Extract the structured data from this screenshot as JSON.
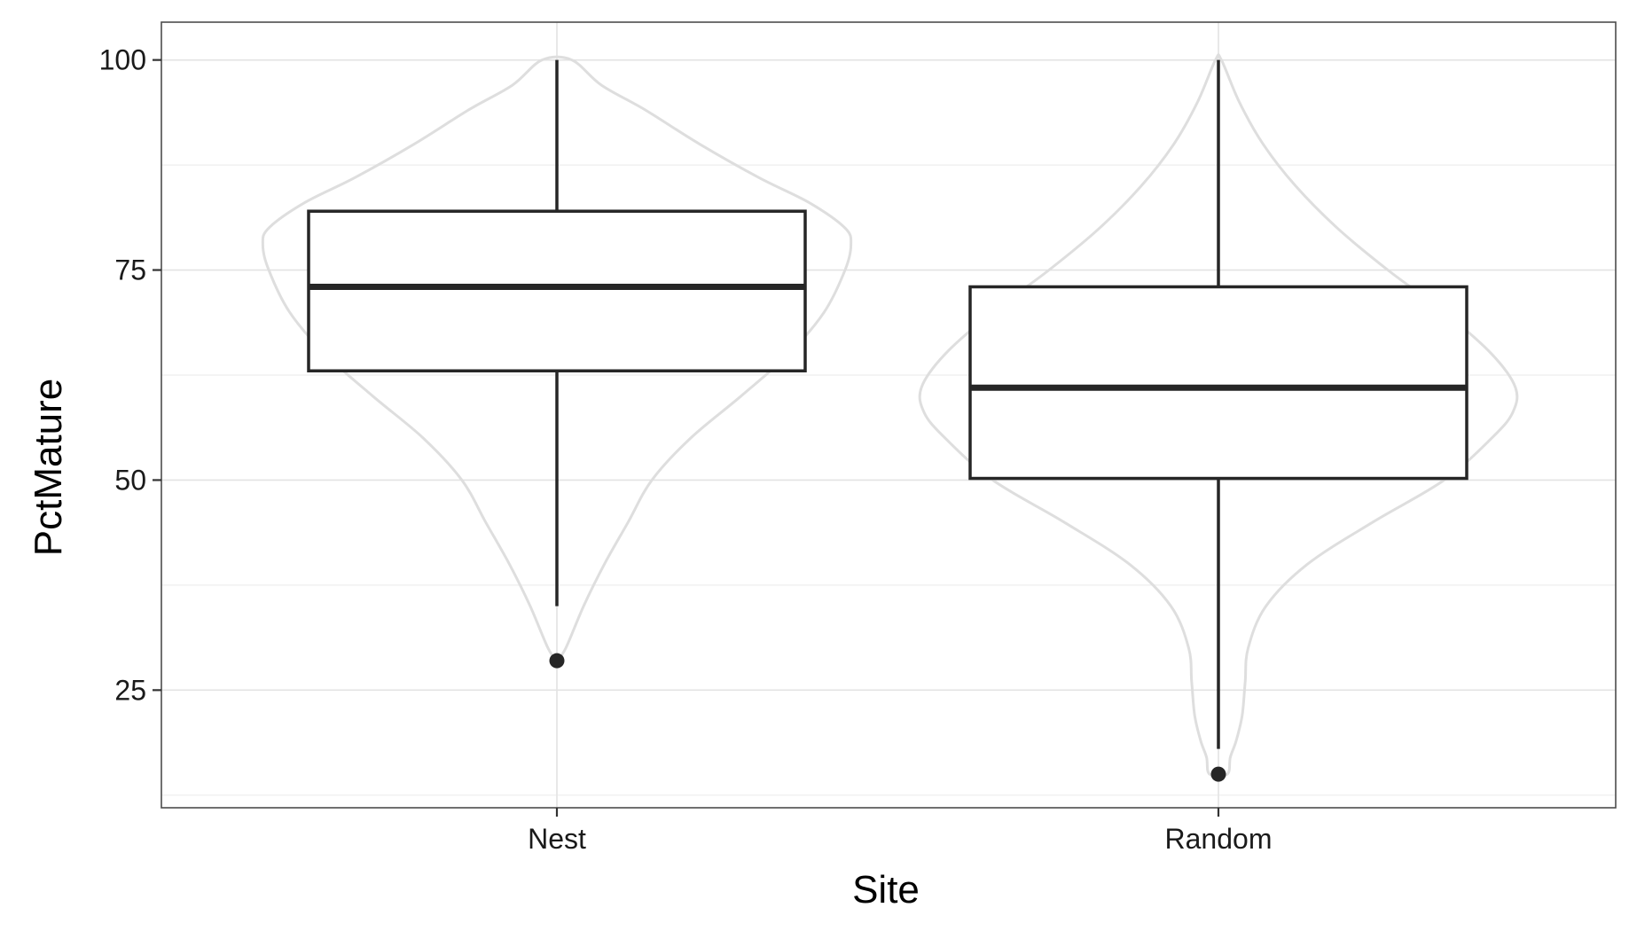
{
  "chart_data": {
    "type": "boxplot",
    "overlay": "violin",
    "xlabel": "Site",
    "ylabel": "PctMature",
    "categories": [
      "Nest",
      "Random"
    ],
    "ylim": [
      11,
      104.5
    ],
    "yticks": [
      25,
      50,
      75,
      100
    ],
    "grid": true,
    "legend": "none",
    "boxes": [
      {
        "category": "Nest",
        "whisker_low": 35,
        "q1": 63,
        "median": 73,
        "q3": 82,
        "whisker_high": 100,
        "outliers": [
          28.5
        ]
      },
      {
        "category": "Random",
        "whisker_low": 18,
        "q1": 50.2,
        "median": 61,
        "q3": 73,
        "whisker_high": 100,
        "outliers": [
          15
        ]
      }
    ],
    "violins": [
      {
        "category": "Nest",
        "profile": [
          [
            28.5,
            0.0
          ],
          [
            30,
            0.03
          ],
          [
            35,
            0.09
          ],
          [
            40,
            0.16
          ],
          [
            45,
            0.24
          ],
          [
            50,
            0.32
          ],
          [
            55,
            0.45
          ],
          [
            60,
            0.62
          ],
          [
            65,
            0.78
          ],
          [
            70,
            0.9
          ],
          [
            75,
            0.97
          ],
          [
            78,
            0.99
          ],
          [
            80,
            0.97
          ],
          [
            83,
            0.85
          ],
          [
            86,
            0.68
          ],
          [
            90,
            0.48
          ],
          [
            94,
            0.3
          ],
          [
            97,
            0.15
          ],
          [
            100,
            0.05
          ]
        ]
      },
      {
        "category": "Random",
        "profile": [
          [
            15,
            0.03
          ],
          [
            17,
            0.04
          ],
          [
            19,
            0.06
          ],
          [
            22,
            0.08
          ],
          [
            26,
            0.09
          ],
          [
            30,
            0.1
          ],
          [
            35,
            0.16
          ],
          [
            40,
            0.3
          ],
          [
            45,
            0.52
          ],
          [
            50,
            0.76
          ],
          [
            55,
            0.92
          ],
          [
            58,
            0.99
          ],
          [
            61,
            1.0
          ],
          [
            65,
            0.92
          ],
          [
            70,
            0.76
          ],
          [
            75,
            0.57
          ],
          [
            80,
            0.4
          ],
          [
            85,
            0.26
          ],
          [
            90,
            0.15
          ],
          [
            95,
            0.07
          ],
          [
            100,
            0.01
          ]
        ]
      }
    ],
    "colors": {
      "panel_border": "#4d4d4d",
      "grid_major": "#e3e3e3",
      "grid_minor": "#f1f1f1",
      "violin_stroke": "#dedede",
      "box_stroke": "#262626",
      "box_fill": "#ffffff",
      "text": "#1a1a1a"
    }
  }
}
